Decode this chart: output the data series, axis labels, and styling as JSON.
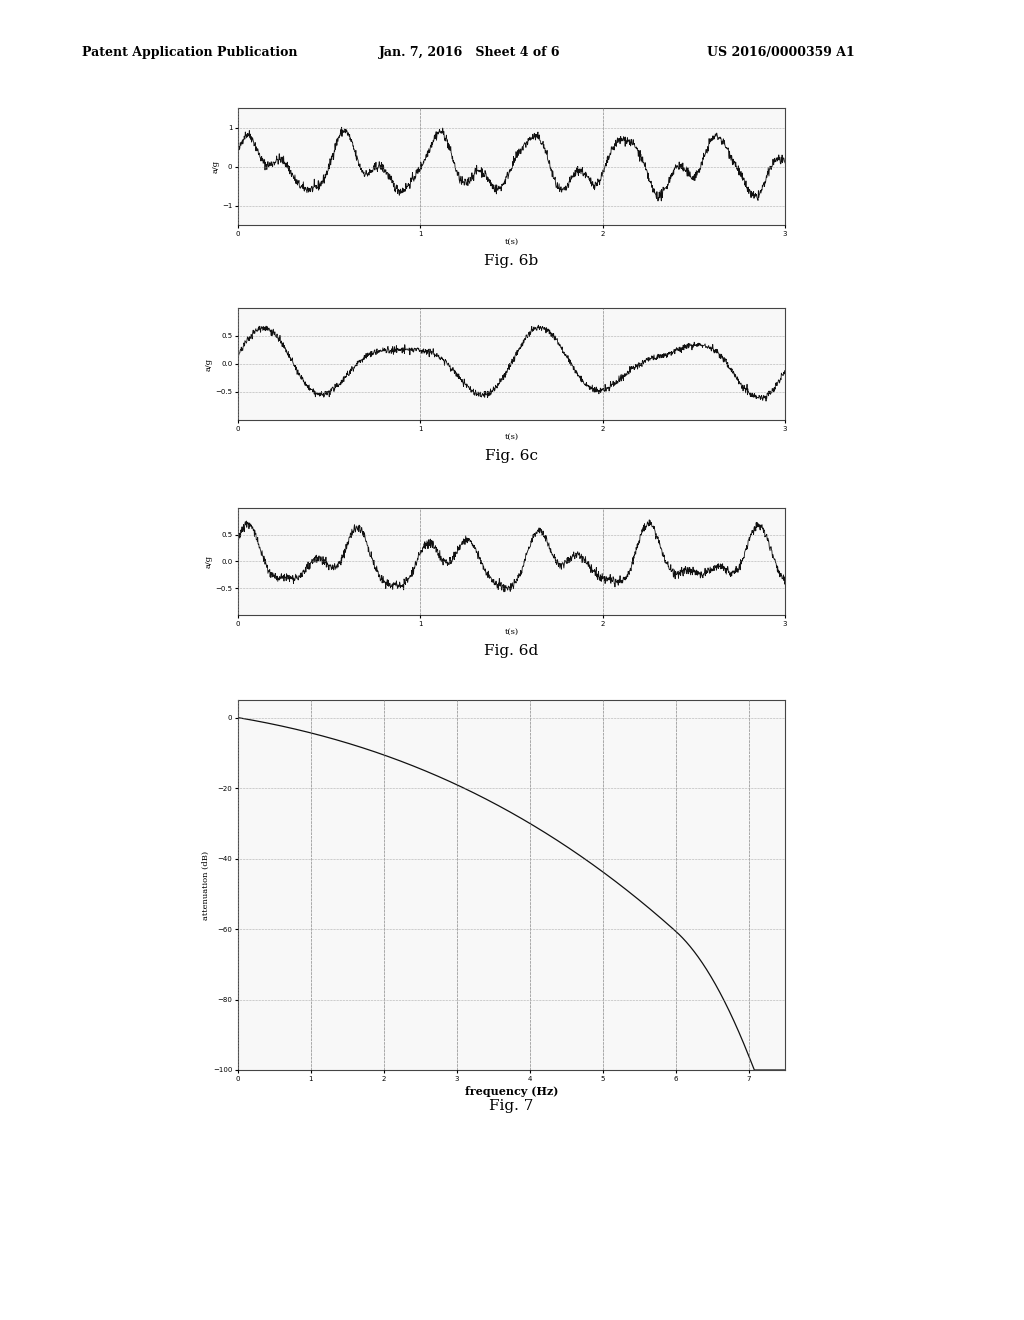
{
  "header_left": "Patent Application Publication",
  "header_mid": "Jan. 7, 2016   Sheet 4 of 6",
  "header_right": "US 2016/0000359 A1",
  "fig6b_label": "Fig. 6b",
  "fig6c_label": "Fig. 6c",
  "fig6d_label": "Fig. 6d",
  "fig7_label": "Fig. 7",
  "axes_6b": {
    "xlabel": "t(s)",
    "ylabel": "a/g",
    "xlim": [
      0,
      3
    ],
    "ylim": [
      -1.5,
      1.5
    ],
    "xticks": [
      0,
      1,
      2,
      3
    ],
    "yticks": [
      -1,
      0,
      1
    ]
  },
  "axes_6c": {
    "xlabel": "t(s)",
    "ylabel": "a/g",
    "xlim": [
      0,
      3
    ],
    "ylim": [
      -1,
      1
    ],
    "xticks": [
      0,
      1,
      2,
      3
    ],
    "yticks": [
      -0.5,
      0,
      0.5
    ]
  },
  "axes_6d": {
    "xlabel": "t(s)",
    "ylabel": "a/g",
    "xlim": [
      0,
      3
    ],
    "ylim": [
      -1,
      1
    ],
    "xticks": [
      0,
      1,
      2,
      3
    ],
    "yticks": [
      -0.5,
      0,
      0.5
    ]
  },
  "axes_7": {
    "xlabel": "frequency (Hz)",
    "ylabel": "attenuation (dB)",
    "xlim": [
      0,
      7.5
    ],
    "ylim": [
      -100,
      5
    ],
    "xticks": [
      0,
      1,
      2,
      3,
      4,
      5,
      6,
      7
    ],
    "yticks": [
      -100,
      -80,
      -60,
      -40,
      -20,
      0
    ]
  }
}
